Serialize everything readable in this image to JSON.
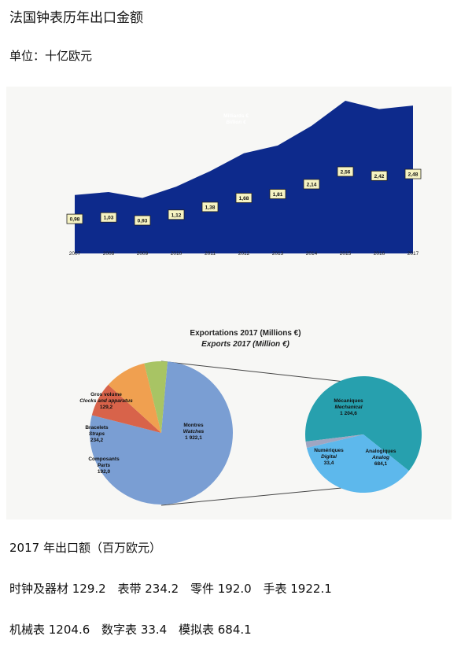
{
  "header": {
    "title": "法国钟表历年出口金额",
    "unit": "单位：十亿欧元"
  },
  "chart_data": [
    {
      "type": "area",
      "legend": [
        "Milliards €",
        "Billion €"
      ],
      "x": [
        "2007",
        "2008",
        "2009",
        "2010",
        "2011",
        "2012",
        "2013",
        "2014",
        "2015",
        "2016",
        "2017"
      ],
      "values": [
        0.98,
        1.03,
        0.93,
        1.12,
        1.38,
        1.68,
        1.81,
        2.14,
        2.56,
        2.42,
        2.48
      ],
      "value_labels": [
        "0,98",
        "1,03",
        "0,93",
        "1,12",
        "1,38",
        "1,68",
        "1,81",
        "2,14",
        "2,56",
        "2,42",
        "2,48"
      ],
      "colors": {
        "fill": "#0d2a8c",
        "label_bg": "#f6f3c2"
      }
    },
    {
      "type": "pie",
      "title": "Exportations 2017  (Millions €)",
      "subtitle": "Exports 2017  (Million €)",
      "slices": [
        {
          "fr": "Montres",
          "en": "Watches",
          "value": 1922.1,
          "label": "1 922,1",
          "color": "#7a9ed3"
        },
        {
          "fr": "Composants",
          "en": "Parts",
          "value": 192.0,
          "label": "192,0",
          "color": "#d8634a"
        },
        {
          "fr": "Bracelets",
          "en": "Straps",
          "value": 234.2,
          "label": "234,2",
          "color": "#f0a050"
        },
        {
          "fr": "Gros volume",
          "en": "Clocks and apparatus",
          "value": 129.2,
          "label": "129,2",
          "color": "#a8c464"
        }
      ]
    },
    {
      "type": "pie",
      "slices": [
        {
          "fr": "Mécaniques",
          "en": "Mechanical",
          "value": 1204.6,
          "label": "1 204,6",
          "color": "#27a0ae"
        },
        {
          "fr": "Analogiques",
          "en": "Analog",
          "value": 684.1,
          "label": "684,1",
          "color": "#5db8ec"
        },
        {
          "fr": "Numériques",
          "en": "Digital",
          "value": 33.4,
          "label": "33,4",
          "color": "#9fa6c2"
        }
      ]
    }
  ],
  "notes": {
    "heading": "2017 年出口额（百万欧元）",
    "line1": [
      "时钟及器材 129.2",
      "表带 234.2",
      "零件 192.0",
      "手表 1922.1"
    ],
    "line2": [
      "机械表 1204.6",
      "数字表 33.4",
      "模拟表 684.1"
    ]
  }
}
